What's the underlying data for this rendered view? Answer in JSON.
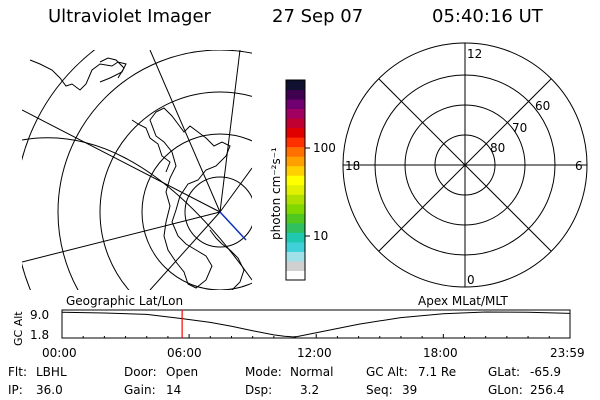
{
  "header": {
    "instrument": "Ultraviolet Imager",
    "date": "27 Sep 07",
    "time": "05:40:16 UT"
  },
  "colorbar": {
    "unit_label": "photon cm⁻²s⁻¹",
    "ticks": [
      "100",
      "10"
    ],
    "colors": [
      "#ffffff",
      "#d0d0d0",
      "#a0e0e8",
      "#40d0d8",
      "#20c8b0",
      "#30c060",
      "#50c820",
      "#80d800",
      "#b0e000",
      "#e0f000",
      "#ffff00",
      "#ffd000",
      "#ffa000",
      "#ff7000",
      "#ff3000",
      "#e00000",
      "#c00030",
      "#a00060",
      "#700070",
      "#400050",
      "#101030"
    ]
  },
  "polar_plot": {
    "mlt_labels": [
      "12",
      "18",
      "6",
      "0"
    ],
    "lat_labels": [
      "60",
      "70",
      "80"
    ]
  },
  "timeline": {
    "left_title": "Geographic Lat/Lon",
    "right_title": "Apex MLat/MLT",
    "axis_label": "GC Alt",
    "y_labels": [
      "9.0",
      "1.8"
    ],
    "x_labels": [
      "00:00",
      "06:00",
      "12:00",
      "18:00",
      "23:59"
    ],
    "marker_color": "#ff0000"
  },
  "chart_data": {
    "type": "line",
    "title": "",
    "xlabel": "",
    "ylabel": "GC Alt",
    "x": [
      0,
      2,
      4,
      5.67,
      7,
      8,
      9,
      10,
      10.5,
      11,
      12,
      14,
      16,
      18,
      20,
      22,
      23.98
    ],
    "values": [
      8.9,
      8.7,
      8.3,
      7.1,
      6.0,
      4.9,
      3.6,
      2.4,
      2.0,
      1.8,
      3.0,
      5.5,
      7.4,
      8.5,
      9.0,
      8.9,
      8.6
    ],
    "ylim": [
      1.8,
      9.0
    ],
    "xlim": [
      0,
      23.98
    ],
    "marker_x": 5.67
  },
  "info": {
    "row1": [
      {
        "key": "Flt:",
        "val": "LBHL"
      },
      {
        "key": "Door:",
        "val": "Open"
      },
      {
        "key": "Mode:",
        "val": "Normal"
      },
      {
        "key": "GC Alt:",
        "val": "7.1 Re"
      },
      {
        "key": "GLat:",
        "val": "-65.9"
      }
    ],
    "row2": [
      {
        "key": "IP:",
        "val": "36.0"
      },
      {
        "key": "Gain:",
        "val": "14"
      },
      {
        "key": "Dsp:",
        "val": "3.2"
      },
      {
        "key": "Seq:",
        "val": "39"
      },
      {
        "key": "GLon:",
        "val": "256.4"
      }
    ]
  }
}
